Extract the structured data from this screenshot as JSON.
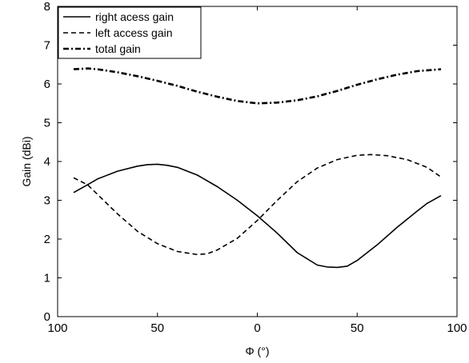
{
  "chart_data": {
    "type": "line",
    "title": "",
    "xlabel": "Φ (°)",
    "ylabel": "Gain (dBi)",
    "xlim": [
      100,
      -100
    ],
    "ylim": [
      0,
      8
    ],
    "x_ticks": [
      100,
      50,
      0,
      -50,
      -100
    ],
    "x_tick_labels": [
      "100",
      "50",
      "0",
      "50",
      "100"
    ],
    "y_ticks": [
      0,
      1,
      2,
      3,
      4,
      5,
      6,
      7,
      8
    ],
    "y_tick_labels": [
      "0",
      "1",
      "2",
      "3",
      "4",
      "5",
      "6",
      "7",
      "8"
    ],
    "grid": false,
    "legend_position": "top-left",
    "series": [
      {
        "name": "right acess gain",
        "style": "solid",
        "x": [
          92,
          85,
          80,
          70,
          60,
          55,
          50,
          45,
          40,
          30,
          20,
          10,
          0,
          -10,
          -20,
          -30,
          -35,
          -40,
          -45,
          -50,
          -60,
          -70,
          -80,
          -85,
          -92
        ],
        "values": [
          3.2,
          3.4,
          3.55,
          3.75,
          3.88,
          3.92,
          3.93,
          3.9,
          3.85,
          3.65,
          3.35,
          3.0,
          2.6,
          2.15,
          1.65,
          1.33,
          1.28,
          1.27,
          1.3,
          1.45,
          1.85,
          2.3,
          2.72,
          2.92,
          3.12
        ]
      },
      {
        "name": "left access gain",
        "style": "dashed",
        "x": [
          92,
          85,
          80,
          70,
          60,
          50,
          40,
          30,
          25,
          20,
          10,
          0,
          -10,
          -20,
          -30,
          -40,
          -50,
          -57,
          -65,
          -75,
          -85,
          -92
        ],
        "values": [
          3.58,
          3.4,
          3.15,
          2.65,
          2.2,
          1.88,
          1.68,
          1.6,
          1.62,
          1.72,
          2.02,
          2.48,
          3.0,
          3.48,
          3.83,
          4.05,
          4.16,
          4.18,
          4.15,
          4.05,
          3.85,
          3.6
        ]
      },
      {
        "name": "total gain",
        "style": "dashdot",
        "x": [
          92,
          85,
          80,
          70,
          60,
          50,
          40,
          30,
          20,
          10,
          0,
          -10,
          -20,
          -30,
          -40,
          -50,
          -60,
          -70,
          -80,
          -92
        ],
        "values": [
          6.38,
          6.4,
          6.38,
          6.3,
          6.2,
          6.08,
          5.95,
          5.8,
          5.67,
          5.56,
          5.5,
          5.52,
          5.58,
          5.68,
          5.82,
          5.98,
          6.12,
          6.24,
          6.33,
          6.38
        ]
      }
    ]
  }
}
